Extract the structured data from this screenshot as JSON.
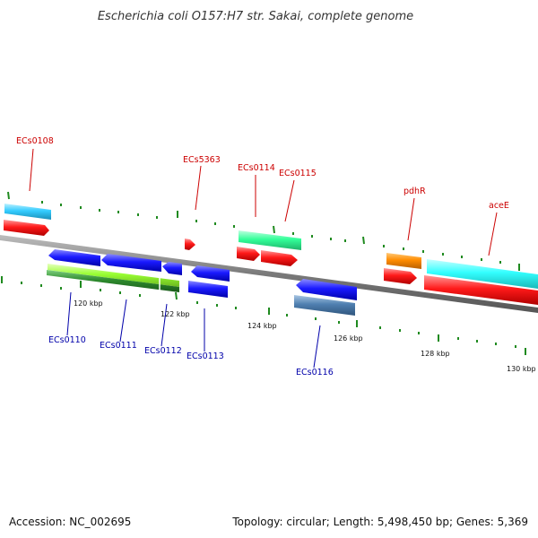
{
  "title": "Escherichia coli O157:H7 str. Sakai, complete genome",
  "footer": {
    "accession": "Accession: NC_002695",
    "summary": "Topology: circular; Length: 5,498,450 bp; Genes: 5,369"
  },
  "colors": {
    "backbone": "#7a7a7a",
    "ticks": "#1f8a1f",
    "forward_label": "#cc0000",
    "reverse_label": "#0000aa",
    "cds_red": "#ff1a1a",
    "cds_blue": "#1a1aff",
    "cyan": "#33ccff",
    "aqua": "#33ffff",
    "spring_green": "#33ff99",
    "orange": "#ff8c00",
    "lime": "#99ff33",
    "dark_green": "#2e8b2e",
    "steel": "#4f7fb0"
  },
  "scale_labels": [
    "120 kbp",
    "122 kbp",
    "124 kbp",
    "126 kbp",
    "128 kbp",
    "130 kbp"
  ],
  "forward_genes": [
    "ECs0108",
    "ECs5363",
    "ECs0114",
    "ECs0115",
    "pdhR",
    "aceE"
  ],
  "reverse_genes": [
    "ECs0110",
    "ECs0111",
    "ECs0112",
    "ECs0113",
    "ECs0116"
  ]
}
